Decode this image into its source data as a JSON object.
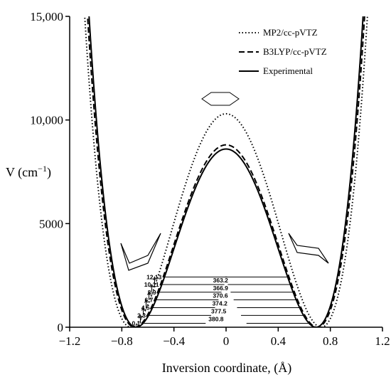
{
  "chart_data": {
    "type": "line",
    "xlabel": "Inversion coordinate, (Å)",
    "ylabel_main": "V (cm",
    "ylabel_sup": "−1",
    "ylabel_close": ")",
    "xlim": [
      -1.2,
      1.2
    ],
    "ylim": [
      0,
      15000
    ],
    "x_ticks": [
      -1.2,
      -0.8,
      -0.4,
      0,
      0.4,
      0.8,
      1.2
    ],
    "x_tick_labels": [
      "−1.2",
      "−0.8",
      "−0.4",
      "0",
      "0.4",
      "0.8",
      "1.2"
    ],
    "y_ticks": [
      0,
      5000,
      10000,
      15000
    ],
    "y_tick_labels": [
      "0",
      "5000",
      "10,000",
      "15,000"
    ],
    "grid": false,
    "legend_position": "top-right",
    "series": [
      {
        "name": "MP2/cc-pVTZ",
        "style": "dotted",
        "barrier": 10300,
        "x_min": 0.73
      },
      {
        "name": "B3LYP/cc-pVTZ",
        "style": "dashed",
        "barrier": 8800,
        "x_min": 0.7
      },
      {
        "name": "Experimental",
        "style": "solid",
        "barrier": 8600,
        "x_min": 0.69
      }
    ],
    "energy_levels": [
      {
        "label": "0,1",
        "energy": 190,
        "spacing": "380.8"
      },
      {
        "label": "2,3",
        "energy": 570,
        "spacing": "377.5"
      },
      {
        "label": "4,5",
        "energy": 945,
        "spacing": "374.2"
      },
      {
        "label": "6,7",
        "energy": 1320,
        "spacing": "370.6"
      },
      {
        "label": "8,9",
        "energy": 1690,
        "spacing": "366.9"
      },
      {
        "label": "10,11",
        "energy": 2060,
        "spacing": "363.2"
      },
      {
        "label": "12,13",
        "energy": 2425,
        "spacing": ""
      }
    ]
  }
}
